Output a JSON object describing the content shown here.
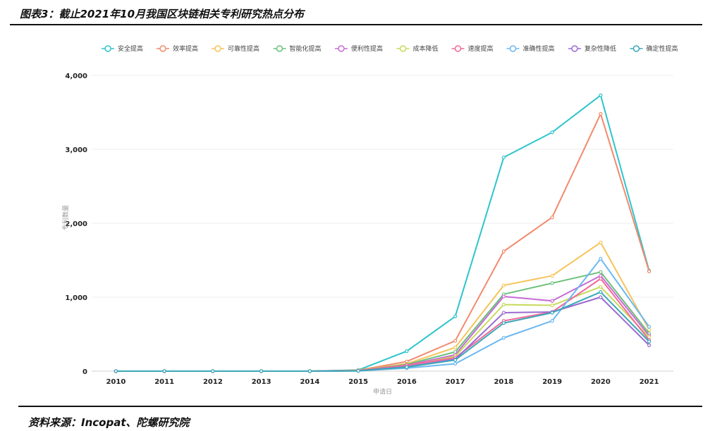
{
  "figure": {
    "title": "图表3：截止2021年10月我国区块链相关专利研究热点分布",
    "source": "资料来源：Incopat、陀螺研究院"
  },
  "colors": [
    "#2ec4cc",
    "#f28a6c",
    "#f7c35a",
    "#6cc07a",
    "#c76bd6",
    "#c8d95a",
    "#f06b9a",
    "#6bb8f0",
    "#9a6bd0",
    "#3aa8b8"
  ],
  "chart_data": {
    "type": "line",
    "title": "",
    "xlabel": "申请日",
    "ylabel": "专利数量",
    "categories": [
      "2010",
      "2011",
      "2012",
      "2013",
      "2014",
      "2015",
      "2016",
      "2017",
      "2018",
      "2019",
      "2020",
      "2021"
    ],
    "y_ticks": [
      "0",
      "1,000",
      "2,000",
      "3,000",
      "4,000"
    ],
    "ylim": [
      0,
      4000
    ],
    "grid": true,
    "legend_position": "top",
    "series": [
      {
        "name": "安全提高",
        "values": [
          0,
          0,
          0,
          0,
          0,
          15,
          270,
          740,
          2890,
          3230,
          3730,
          1360
        ]
      },
      {
        "name": "效率提高",
        "values": [
          0,
          0,
          0,
          0,
          0,
          12,
          130,
          410,
          1620,
          2080,
          3480,
          1350
        ]
      },
      {
        "name": "可靠性提高",
        "values": [
          0,
          0,
          0,
          0,
          0,
          8,
          100,
          320,
          1160,
          1290,
          1740,
          560
        ]
      },
      {
        "name": "智能化提高",
        "values": [
          0,
          0,
          0,
          0,
          0,
          7,
          90,
          260,
          1040,
          1190,
          1340,
          510
        ]
      },
      {
        "name": "便利性提高",
        "values": [
          0,
          0,
          0,
          0,
          0,
          6,
          80,
          220,
          1010,
          950,
          1290,
          480
        ]
      },
      {
        "name": "成本降低",
        "values": [
          0,
          0,
          0,
          0,
          0,
          6,
          70,
          200,
          900,
          890,
          1140,
          460
        ]
      },
      {
        "name": "速度提高",
        "values": [
          0,
          0,
          0,
          0,
          0,
          5,
          80,
          180,
          680,
          800,
          1250,
          420
        ]
      },
      {
        "name": "准确性提高",
        "values": [
          0,
          0,
          0,
          0,
          0,
          3,
          40,
          100,
          450,
          680,
          1520,
          600
        ]
      },
      {
        "name": "复杂性降低",
        "values": [
          0,
          0,
          0,
          0,
          0,
          5,
          60,
          160,
          790,
          800,
          1000,
          350
        ]
      },
      {
        "name": "确定性提高",
        "values": [
          0,
          0,
          0,
          0,
          0,
          4,
          55,
          150,
          650,
          790,
          1070,
          400
        ]
      }
    ]
  }
}
